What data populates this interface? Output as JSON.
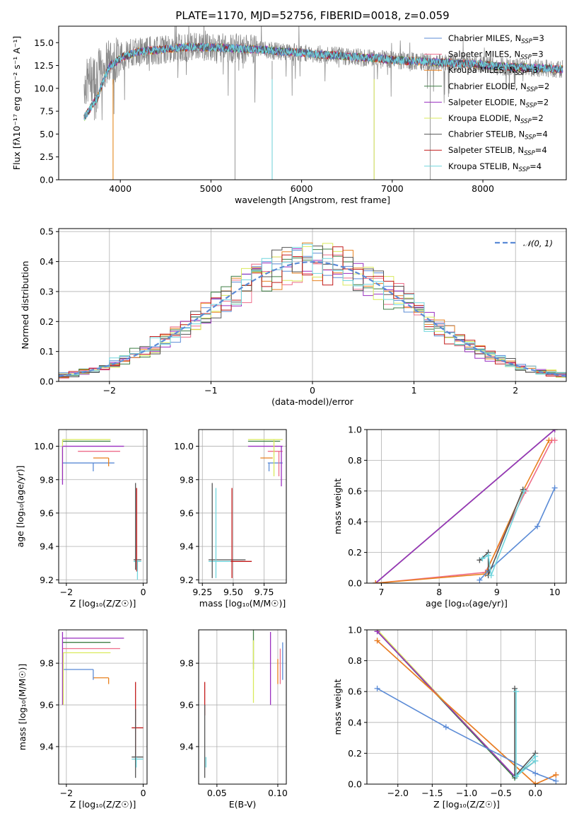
{
  "palette": {
    "c1": "#5b8bd6",
    "c2": "#ee6d8a",
    "c3": "#e8811f",
    "c4": "#3f7f45",
    "c5": "#9a2fc0",
    "c6": "#d9ea5c",
    "c7": "#555555",
    "c8": "#c21a1a",
    "c9": "#71d6de",
    "norm": "#5b8bd6"
  },
  "chart_data": [
    {
      "id": "spectrum",
      "type": "line",
      "title": "PLATE=1170, MJD=52756, FIBERID=0018, z=0.059",
      "xlabel": "wavelength [Angstrom, rest frame]",
      "ylabel": "Flux [fλ10⁻¹⁷ erg cm⁻² s⁻¹ A⁻¹]",
      "xlim": [
        3320,
        8920
      ],
      "ylim": [
        0,
        16.8
      ],
      "xticks": [
        4000,
        5000,
        6000,
        7000,
        8000
      ],
      "xtick_labels": [
        "4000",
        "5000",
        "6000",
        "7000",
        "8000"
      ],
      "yticks": [
        0,
        2.5,
        5,
        7.5,
        10,
        12.5,
        15
      ],
      "ytick_labels": [
        "0.0",
        "2.5",
        "5.0",
        "7.5",
        "10.0",
        "12.5",
        "15.0"
      ],
      "observed": {
        "x": [
          3600,
          3650,
          3700,
          3750,
          3800,
          3850,
          3900,
          3950,
          4000,
          4100,
          4200,
          4300,
          4400,
          4500,
          4600,
          4700,
          4800,
          4900,
          5000,
          5200,
          5400,
          5600,
          5800,
          6000,
          6200,
          6400,
          6600,
          6800,
          7000,
          7200,
          7400,
          7600,
          7800,
          8000,
          8200,
          8400,
          8600,
          8800
        ],
        "y": [
          10.5,
          10.8,
          11.2,
          11.8,
          12.3,
          12.7,
          13.0,
          13.2,
          13.5,
          13.8,
          14.0,
          14.1,
          14.2,
          14.3,
          14.4,
          14.5,
          14.5,
          14.5,
          14.5,
          14.4,
          14.3,
          14.2,
          14.0,
          13.9,
          13.7,
          13.6,
          13.4,
          13.3,
          13.1,
          13.0,
          12.9,
          12.8,
          12.7,
          12.6,
          12.4,
          12.3,
          12.2,
          12.1
        ]
      },
      "model": {
        "x": [
          3600,
          3650,
          3700,
          3750,
          3800,
          3850,
          3900,
          3950,
          4000,
          4100,
          4200,
          4300,
          4400,
          4500,
          4600,
          4700,
          4800,
          4900,
          5000,
          5200,
          5400,
          5600,
          5800,
          6000,
          6200,
          6400,
          6600,
          6800,
          7000,
          7200,
          7400,
          7600,
          7800,
          8000,
          8200,
          8400,
          8600,
          8800
        ],
        "y": [
          6.8,
          7.5,
          8.3,
          9.0,
          10.5,
          11.8,
          12.6,
          12.9,
          13.3,
          13.7,
          14.0,
          14.1,
          14.2,
          14.3,
          14.4,
          14.5,
          14.5,
          14.5,
          14.5,
          14.4,
          14.3,
          14.2,
          14.0,
          13.9,
          13.7,
          13.6,
          13.4,
          13.3,
          13.1,
          13.0,
          12.9,
          12.8,
          12.7,
          12.6,
          12.4,
          12.3,
          12.2,
          12.1
        ]
      },
      "legend_position": "top-right",
      "series_labels": [
        "Chabrier MILES, N<sub>SSP</sub>=3",
        "Salpeter MILES, N<sub>SSP</sub>=3",
        "Kroupa MILES, N<sub>SSP</sub>=3",
        "Chabrier ELODIE, N<sub>SSP</sub>=2",
        "Salpeter ELODIE, N<sub>SSP</sub>=2",
        "Kroupa ELODIE, N<sub>SSP</sub>=2",
        "Chabrier STELIB, N<sub>SSP</sub>=4",
        "Salpeter STELIB, N<sub>SSP</sub>=4",
        "Kroupa STELIB, N<sub>SSP</sub>=4"
      ],
      "series_colors": [
        "c1",
        "c2",
        "c3",
        "c4",
        "c5",
        "c6",
        "c7",
        "c8",
        "c9"
      ]
    },
    {
      "id": "residuals",
      "type": "bar",
      "xlabel": "(data-model)/error",
      "ylabel": "Normed distribution",
      "xlim": [
        -2.5,
        2.5
      ],
      "ylim": [
        0,
        0.51
      ],
      "xticks": [
        -2,
        -1,
        0,
        1,
        2
      ],
      "xtick_labels": [
        "−2",
        "−1",
        "0",
        "1",
        "2"
      ],
      "yticks": [
        0,
        0.1,
        0.2,
        0.3,
        0.4,
        0.5
      ],
      "ytick_labels": [
        "0.0",
        "0.1",
        "0.2",
        "0.3",
        "0.4",
        "0.5"
      ],
      "bin_width": 0.1,
      "legend_position": "top-right",
      "gaussian_label": "𝒩(0, 1)"
    },
    {
      "id": "age-z",
      "type": "scatter",
      "xlabel": "Z [log₁₀(Z/Z☉)]",
      "ylabel": "age  [log₁₀(age/yr)]",
      "xlim": [
        -2.2,
        0.1
      ],
      "ylim": [
        9.18,
        10.1
      ],
      "xticks": [
        -2,
        0
      ],
      "xtick_labels": [
        "−2",
        "0"
      ],
      "yticks": [
        9.2,
        9.4,
        9.6,
        9.8,
        10.0
      ],
      "ytick_labels": [
        "9.2",
        "9.4",
        "9.6",
        "9.8",
        "10.0"
      ],
      "h_errors": [
        {
          "c": "c6",
          "y": 10.04,
          "x0": -2.1,
          "x1": -0.85
        },
        {
          "c": "c4",
          "y": 10.03,
          "x0": -2.1,
          "x1": -0.85
        },
        {
          "c": "c5",
          "y": 10.0,
          "x0": -2.1,
          "x1": -0.5
        },
        {
          "c": "c2",
          "y": 9.97,
          "x0": -1.7,
          "x1": -0.6
        },
        {
          "c": "c3",
          "y": 9.93,
          "x0": -1.3,
          "x1": -0.9
        },
        {
          "c": "c1",
          "y": 9.9,
          "x0": -2.1,
          "x1": -0.75
        },
        {
          "c": "c7",
          "y": 9.32,
          "x0": -0.25,
          "x1": -0.05
        },
        {
          "c": "c9",
          "y": 9.31,
          "x0": -0.25,
          "x1": -0.05
        }
      ],
      "v_errors": [
        {
          "c": "c6",
          "x": -2.1,
          "y0": 9.8,
          "y1": 10.04
        },
        {
          "c": "c5",
          "x": -2.1,
          "y0": 9.77,
          "y1": 10.0
        },
        {
          "c": "c1",
          "x": -1.3,
          "y0": 9.85,
          "y1": 9.9
        },
        {
          "c": "c3",
          "x": -0.9,
          "y0": 9.88,
          "y1": 9.93
        },
        {
          "c": "c7",
          "x": -0.2,
          "y0": 9.26,
          "y1": 9.78
        },
        {
          "c": "c8",
          "x": -0.17,
          "y0": 9.25,
          "y1": 9.75
        },
        {
          "c": "c9",
          "x": -0.15,
          "y0": 9.2,
          "y1": 9.32
        }
      ]
    },
    {
      "id": "age-mass",
      "type": "scatter",
      "xlabel": "mass [log₁₀(M/M☉)]",
      "ylabel": "",
      "xlim": [
        9.22,
        9.93
      ],
      "ylim": [
        9.18,
        10.1
      ],
      "xticks": [
        9.25,
        9.5,
        9.75
      ],
      "xtick_labels": [
        "9.25",
        "9.50",
        "9.75"
      ],
      "yticks": [
        9.2,
        9.4,
        9.6,
        9.8,
        10.0
      ],
      "ytick_labels": [
        "9.2",
        "9.4",
        "9.6",
        "9.8",
        "10.0"
      ],
      "h_errors": [
        {
          "c": "c6",
          "y": 10.04,
          "x0": 9.62,
          "x1": 9.9
        },
        {
          "c": "c4",
          "y": 10.03,
          "x0": 9.62,
          "x1": 9.88
        },
        {
          "c": "c5",
          "y": 10.0,
          "x0": 9.62,
          "x1": 9.9
        },
        {
          "c": "c2",
          "y": 9.97,
          "x0": 9.78,
          "x1": 9.9
        },
        {
          "c": "c3",
          "y": 9.93,
          "x0": 9.72,
          "x1": 9.82
        },
        {
          "c": "c1",
          "y": 9.9,
          "x0": 9.78,
          "x1": 9.9
        },
        {
          "c": "c7",
          "y": 9.32,
          "x0": 9.3,
          "x1": 9.6
        },
        {
          "c": "c9",
          "y": 9.31,
          "x0": 9.3,
          "x1": 9.58
        },
        {
          "c": "c8",
          "y": 9.31,
          "x0": 9.48,
          "x1": 9.65
        }
      ],
      "v_errors": [
        {
          "c": "c6",
          "x": 9.83,
          "y0": 9.82,
          "y1": 10.04
        },
        {
          "c": "c5",
          "x": 9.89,
          "y0": 9.76,
          "y1": 10.0
        },
        {
          "c": "c2",
          "x": 9.87,
          "y0": 9.82,
          "y1": 9.97
        },
        {
          "c": "c1",
          "x": 9.79,
          "y0": 9.85,
          "y1": 9.9
        },
        {
          "c": "c7",
          "x": 9.33,
          "y0": 9.21,
          "y1": 9.78
        },
        {
          "c": "c9",
          "x": 9.36,
          "y0": 9.21,
          "y1": 9.75
        },
        {
          "c": "c8",
          "x": 9.49,
          "y0": 9.21,
          "y1": 9.75
        }
      ]
    },
    {
      "id": "weight-age",
      "type": "line",
      "xlabel": "age  [log₁₀(age/yr)]",
      "ylabel": "mass weight",
      "xlim": [
        6.75,
        10.2
      ],
      "ylim": [
        0,
        1.0
      ],
      "xticks": [
        7,
        8,
        9,
        10
      ],
      "xtick_labels": [
        "7",
        "8",
        "9",
        "10"
      ],
      "yticks": [
        0,
        0.2,
        0.4,
        0.6,
        0.8,
        1.0
      ],
      "ytick_labels": [
        "0.0",
        "0.2",
        "0.4",
        "0.6",
        "0.8",
        "1.0"
      ],
      "series": [
        {
          "c": "c6",
          "x": [
            6.9,
            10.0
          ],
          "y": [
            0.0,
            1.0
          ]
        },
        {
          "c": "c4",
          "x": [
            6.9,
            10.0
          ],
          "y": [
            0.0,
            1.0
          ]
        },
        {
          "c": "c5",
          "x": [
            6.9,
            10.0
          ],
          "y": [
            0.0,
            1.0
          ]
        },
        {
          "c": "c2",
          "x": [
            6.9,
            8.8,
            9.5,
            9.95,
            10.0
          ],
          "y": [
            0.0,
            0.07,
            0.6,
            0.93,
            0.93
          ]
        },
        {
          "c": "c3",
          "x": [
            6.9,
            8.8,
            9.45,
            9.9
          ],
          "y": [
            0.0,
            0.06,
            0.6,
            0.93
          ]
        },
        {
          "c": "c1",
          "x": [
            8.7,
            8.85,
            9.7,
            10.0
          ],
          "y": [
            0.02,
            0.08,
            0.37,
            0.62
          ]
        },
        {
          "c": "c7",
          "x": [
            8.7,
            8.85,
            8.85,
            9.45
          ],
          "y": [
            0.15,
            0.2,
            0.05,
            0.61
          ]
        },
        {
          "c": "c9",
          "x": [
            8.75,
            8.85,
            8.9,
            9.47
          ],
          "y": [
            0.16,
            0.18,
            0.05,
            0.6
          ]
        }
      ]
    },
    {
      "id": "mass-z",
      "type": "scatter",
      "xlabel": "Z [log₁₀(Z/Z☉)]",
      "ylabel": "mass [log₁₀(M/M☉)]",
      "xlim": [
        -2.2,
        0.1
      ],
      "ylim": [
        9.22,
        9.96
      ],
      "xticks": [
        -2,
        0
      ],
      "xtick_labels": [
        "−2",
        "0"
      ],
      "yticks": [
        9.4,
        9.6,
        9.8
      ],
      "ytick_labels": [
        "9.4",
        "9.6",
        "9.8"
      ],
      "h_errors": [
        {
          "c": "c5",
          "y": 9.92,
          "x0": -2.1,
          "x1": -0.5
        },
        {
          "c": "c4",
          "y": 9.9,
          "x0": -2.1,
          "x1": -0.85
        },
        {
          "c": "c2",
          "y": 9.87,
          "x0": -2.1,
          "x1": -0.6
        },
        {
          "c": "c6",
          "y": 9.85,
          "x0": -2.1,
          "x1": -0.85
        },
        {
          "c": "c1",
          "y": 9.77,
          "x0": -2.1,
          "x1": -1.3
        },
        {
          "c": "c3",
          "y": 9.73,
          "x0": -1.3,
          "x1": -0.9
        },
        {
          "c": "c8",
          "y": 9.49,
          "x0": -0.3,
          "x1": 0.0
        },
        {
          "c": "c7",
          "y": 9.35,
          "x0": -0.3,
          "x1": 0.0
        },
        {
          "c": "c9",
          "y": 9.34,
          "x0": -0.3,
          "x1": 0.0
        }
      ],
      "v_errors": [
        {
          "c": "c5",
          "x": -2.1,
          "y0": 9.6,
          "y1": 9.95
        },
        {
          "c": "c6",
          "x": -2.08,
          "y0": 9.6,
          "y1": 9.85
        },
        {
          "c": "c1",
          "x": -1.3,
          "y0": 9.72,
          "y1": 9.77
        },
        {
          "c": "c3",
          "x": -0.9,
          "y0": 9.7,
          "y1": 9.73
        },
        {
          "c": "c8",
          "x": -0.2,
          "y0": 9.35,
          "y1": 9.71
        },
        {
          "c": "c7",
          "x": -0.2,
          "y0": 9.25,
          "y1": 9.58
        },
        {
          "c": "c9",
          "x": -0.18,
          "y0": 9.3,
          "y1": 9.35
        }
      ]
    },
    {
      "id": "mass-ebv",
      "type": "scatter",
      "xlabel": "E(B-V)",
      "ylabel": "",
      "xlim": [
        0.035,
        0.107
      ],
      "ylim": [
        9.22,
        9.96
      ],
      "xticks": [
        0.05,
        0.1
      ],
      "xtick_labels": [
        "0.05",
        "0.10"
      ],
      "yticks": [
        9.4,
        9.6,
        9.8
      ],
      "ytick_labels": [
        "9.4",
        "9.6",
        "9.8"
      ],
      "v_errors": [
        {
          "c": "c8",
          "x": 0.04,
          "y0": 9.55,
          "y1": 9.71
        },
        {
          "c": "c7",
          "x": 0.04,
          "y0": 9.25,
          "y1": 9.6
        },
        {
          "c": "c9",
          "x": 0.041,
          "y0": 9.3,
          "y1": 9.35
        },
        {
          "c": "c4",
          "x": 0.08,
          "y0": 9.77,
          "y1": 9.96
        },
        {
          "c": "c6",
          "x": 0.08,
          "y0": 9.61,
          "y1": 9.91
        },
        {
          "c": "c5",
          "x": 0.094,
          "y0": 9.6,
          "y1": 9.95
        },
        {
          "c": "c3",
          "x": 0.1,
          "y0": 9.7,
          "y1": 9.82
        },
        {
          "c": "c2",
          "x": 0.102,
          "y0": 9.7,
          "y1": 9.87
        },
        {
          "c": "c1",
          "x": 0.104,
          "y0": 9.72,
          "y1": 9.9
        }
      ]
    },
    {
      "id": "weight-z",
      "type": "line",
      "xlabel": "Z [log₁₀(Z/Z☉)]",
      "ylabel": "mass weight",
      "xlim": [
        -2.45,
        0.45
      ],
      "ylim": [
        0,
        1.0
      ],
      "xticks": [
        -2.0,
        -1.5,
        -1.0,
        -0.5,
        0.0
      ],
      "xtick_labels": [
        "−2.0",
        "−1.5",
        "−1.0",
        "−0.5",
        "0.0"
      ],
      "yticks": [
        0,
        0.2,
        0.4,
        0.6,
        0.8,
        1.0
      ],
      "ytick_labels": [
        "0.0",
        "0.2",
        "0.4",
        "0.6",
        "0.8",
        "1.0"
      ],
      "series": [
        {
          "c": "c6",
          "x": [
            -2.3,
            -0.3
          ],
          "y": [
            1.0,
            0.05
          ]
        },
        {
          "c": "c4",
          "x": [
            -2.3,
            -0.3
          ],
          "y": [
            0.99,
            0.04
          ]
        },
        {
          "c": "c5",
          "x": [
            -2.3,
            -0.3
          ],
          "y": [
            0.99,
            0.05
          ]
        },
        {
          "c": "c2",
          "x": [
            -2.3,
            0.0,
            0.3
          ],
          "y": [
            0.93,
            0.0,
            0.06
          ]
        },
        {
          "c": "c3",
          "x": [
            -2.3,
            0.0,
            0.3
          ],
          "y": [
            0.93,
            0.0,
            0.06
          ]
        },
        {
          "c": "c1",
          "x": [
            -2.3,
            -1.3,
            0.0,
            0.3
          ],
          "y": [
            0.62,
            0.37,
            0.07,
            0.02
          ]
        },
        {
          "c": "c7",
          "x": [
            -0.3,
            -0.3,
            0.0,
            0.0,
            -0.3
          ],
          "y": [
            0.62,
            0.05,
            0.2,
            0.15,
            0.05
          ]
        },
        {
          "c": "c9",
          "x": [
            -0.28,
            -0.28,
            0.0,
            0.0,
            -0.28
          ],
          "y": [
            0.6,
            0.05,
            0.18,
            0.15,
            0.05
          ]
        }
      ]
    }
  ]
}
